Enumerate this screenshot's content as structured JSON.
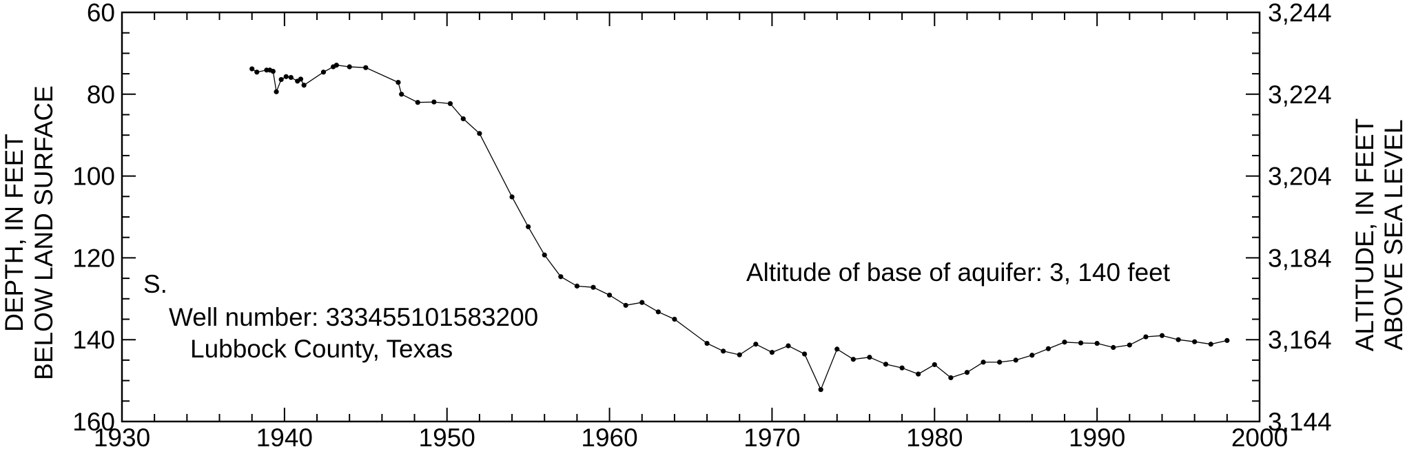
{
  "chart_data": {
    "type": "line",
    "title": "",
    "xlabel": "",
    "ylabel": "DEPTH, IN FEET BELOW LAND SURFACE",
    "ylabel_lines": [
      "DEPTH, IN FEET",
      "BELOW LAND SURFACE"
    ],
    "y2label": "ALTITUDE, IN FEET ABOVE SEA LEVEL",
    "y2label_lines": [
      "ALTITUDE, IN FEET",
      "ABOVE SEA LEVEL"
    ],
    "xlim": [
      1930,
      2000
    ],
    "ylim": [
      60,
      160
    ],
    "y_inverted": true,
    "y2lim": [
      3244,
      3144
    ],
    "x_ticks": [
      "1930",
      "1940",
      "1950",
      "1960",
      "1970",
      "1980",
      "1990",
      "2000"
    ],
    "y_ticks": [
      "60",
      "80",
      "100",
      "120",
      "140",
      "160"
    ],
    "y2_ticks": [
      "3,244",
      "3,224",
      "3,204",
      "3,184",
      "3,164",
      "3,144"
    ],
    "grid": false,
    "annotations": {
      "corner_label": "S.",
      "well_number": "Well number: 333455101583200",
      "county": "Lubbock County, Texas",
      "aquifer_base": "Altitude of base of aquifer: 3, 140 feet"
    },
    "series": [
      {
        "x": [
          1938.0,
          1938.3,
          1938.9,
          1939.1,
          1939.3,
          1939.5,
          1939.8,
          1940.1,
          1940.4,
          1940.8,
          1941.0,
          1941.2,
          1942.4,
          1943.0,
          1943.2,
          1944.0,
          1945.0,
          1947.0,
          1947.2,
          1948.2,
          1949.2,
          1950.2,
          1951.0,
          1952.0,
          1954.0,
          1955.0,
          1956.0,
          1957.0,
          1958.0,
          1959.0,
          1960.0,
          1961.0,
          1962.0,
          1963.0,
          1964.0,
          1966.0,
          1967.0,
          1968.0,
          1969.0,
          1970.0,
          1971.0,
          1972.0,
          1973.0,
          1974.0,
          1975.0,
          1976.0,
          1977.0,
          1978.0,
          1979.0,
          1980.0,
          1981.0,
          1982.0,
          1983.0,
          1984.0,
          1985.0,
          1986.0,
          1987.0,
          1988.0,
          1989.0,
          1990.0,
          1991.0,
          1992.0,
          1993.0,
          1994.0,
          1995.0,
          1996.0,
          1997.0,
          1998.0
        ],
        "values": [
          73.8,
          74.6,
          74.1,
          74.1,
          74.4,
          79.4,
          76.4,
          75.7,
          75.9,
          76.8,
          76.3,
          77.8,
          74.6,
          73.3,
          72.9,
          73.3,
          73.5,
          77.1,
          80.0,
          82.0,
          81.9,
          82.3,
          86.0,
          89.6,
          105.1,
          112.4,
          119.3,
          124.6,
          126.9,
          127.2,
          129.1,
          131.6,
          130.9,
          133.2,
          135.0,
          140.9,
          142.8,
          143.7,
          141.1,
          143.1,
          141.5,
          143.5,
          152.2,
          142.3,
          144.8,
          144.3,
          146.0,
          146.9,
          148.4,
          146.1,
          149.3,
          148.0,
          145.5,
          145.5,
          145.0,
          143.8,
          142.2,
          140.6,
          140.8,
          140.9,
          141.9,
          141.3,
          139.3,
          139.0,
          140.0,
          140.5,
          141.1,
          140.2
        ]
      }
    ]
  }
}
